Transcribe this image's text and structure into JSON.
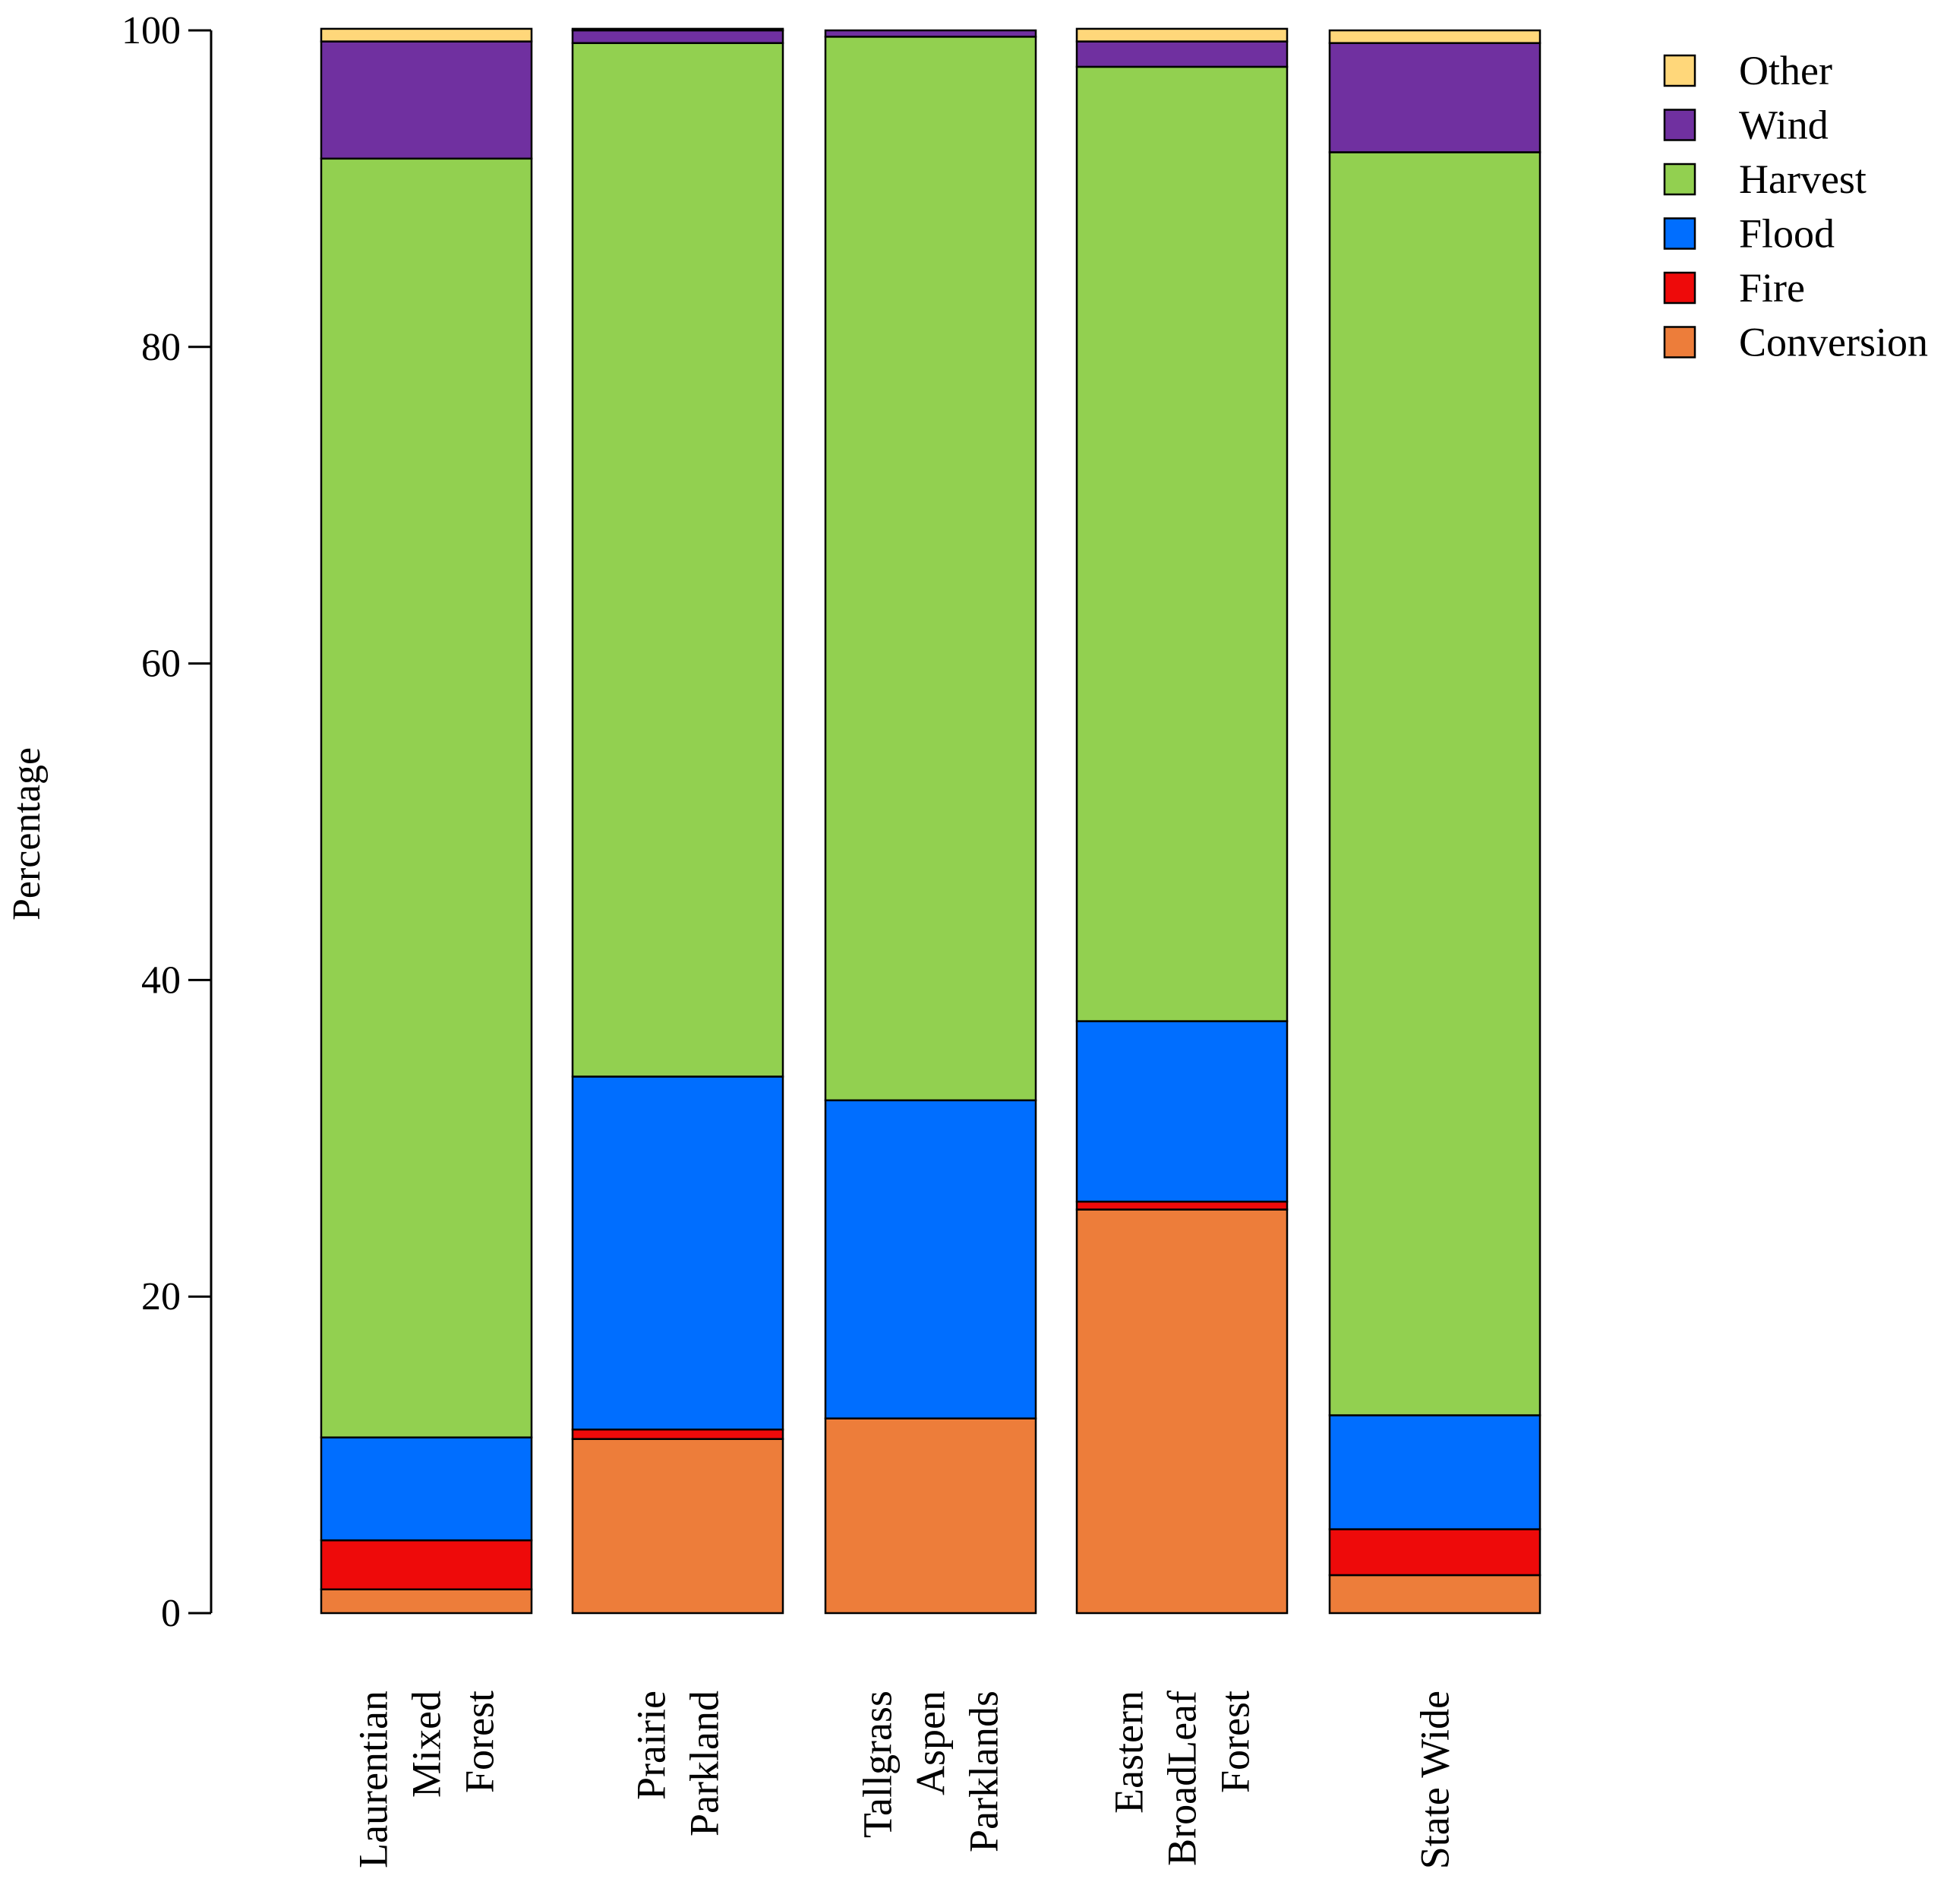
{
  "chart_data": {
    "type": "bar",
    "stacked": true,
    "title": "",
    "xlabel": "",
    "ylabel": "Percentage",
    "ylim": [
      0,
      100
    ],
    "yticks": [
      0,
      20,
      40,
      60,
      80,
      100
    ],
    "categories": [
      [
        "Laurentian",
        "Mixed",
        "Forest"
      ],
      [
        "Prairie",
        "Parkland"
      ],
      [
        "Tallgrass",
        "Aspen",
        "Parklands"
      ],
      [
        "Eastern",
        "BroadLeaf",
        "Forest"
      ],
      [
        "State Wide"
      ]
    ],
    "series": [
      {
        "name": "Conversion",
        "color": "#ED7D3A",
        "values": [
          1.5,
          11.0,
          12.3,
          25.5,
          2.4
        ]
      },
      {
        "name": "Fire",
        "color": "#EE0A0A",
        "values": [
          3.1,
          0.6,
          0.0,
          0.5,
          2.9
        ]
      },
      {
        "name": "Flood",
        "color": "#006EFF",
        "values": [
          6.5,
          22.3,
          20.1,
          11.4,
          7.2
        ]
      },
      {
        "name": "Harvest",
        "color": "#92D050",
        "values": [
          80.8,
          65.3,
          67.2,
          60.3,
          79.8
        ]
      },
      {
        "name": "Wind",
        "color": "#7030A0",
        "values": [
          7.4,
          0.8,
          0.4,
          1.6,
          6.9
        ]
      },
      {
        "name": "Other",
        "color": "#FFD77A",
        "values": [
          0.8,
          0.1,
          0.0,
          0.8,
          0.8
        ]
      }
    ],
    "legend": {
      "position": "top-right",
      "order": [
        "Other",
        "Wind",
        "Harvest",
        "Flood",
        "Fire",
        "Conversion"
      ]
    }
  }
}
